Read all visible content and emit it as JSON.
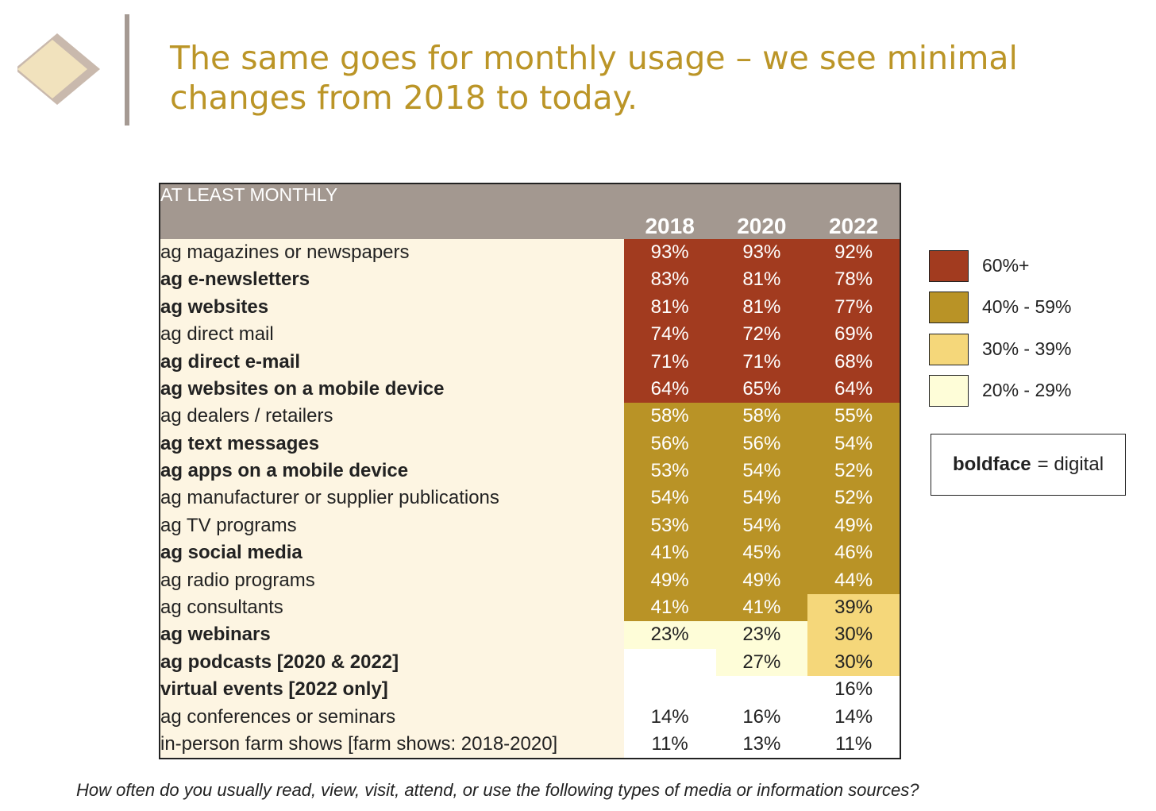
{
  "title": "The same goes for monthly usage – we see minimal changes from 2018 to today.",
  "chart_data": {
    "type": "table",
    "section_header": "AT LEAST MONTHLY",
    "columns": [
      "2018",
      "2020",
      "2022"
    ],
    "rows": [
      {
        "label": "ag magazines or newspapers",
        "digital": false,
        "values": [
          "93%",
          "93%",
          "92%"
        ],
        "bands": [
          "60",
          "60",
          "60"
        ]
      },
      {
        "label": "ag e-newsletters",
        "digital": true,
        "values": [
          "83%",
          "81%",
          "78%"
        ],
        "bands": [
          "60",
          "60",
          "60"
        ]
      },
      {
        "label": "ag websites",
        "digital": true,
        "values": [
          "81%",
          "81%",
          "77%"
        ],
        "bands": [
          "60",
          "60",
          "60"
        ]
      },
      {
        "label": "ag direct mail",
        "digital": false,
        "values": [
          "74%",
          "72%",
          "69%"
        ],
        "bands": [
          "60",
          "60",
          "60"
        ]
      },
      {
        "label": "ag direct e-mail",
        "digital": true,
        "values": [
          "71%",
          "71%",
          "68%"
        ],
        "bands": [
          "60",
          "60",
          "60"
        ]
      },
      {
        "label": "ag websites on a mobile device",
        "digital": true,
        "values": [
          "64%",
          "65%",
          "64%"
        ],
        "bands": [
          "60",
          "60",
          "60"
        ]
      },
      {
        "label": "ag dealers / retailers",
        "digital": false,
        "values": [
          "58%",
          "58%",
          "55%"
        ],
        "bands": [
          "40",
          "40",
          "40"
        ]
      },
      {
        "label": "ag text messages",
        "digital": true,
        "values": [
          "56%",
          "56%",
          "54%"
        ],
        "bands": [
          "40",
          "40",
          "40"
        ]
      },
      {
        "label": "ag apps on a mobile device",
        "digital": true,
        "values": [
          "53%",
          "54%",
          "52%"
        ],
        "bands": [
          "40",
          "40",
          "40"
        ]
      },
      {
        "label": "ag manufacturer or supplier publications",
        "digital": false,
        "values": [
          "54%",
          "54%",
          "52%"
        ],
        "bands": [
          "40",
          "40",
          "40"
        ]
      },
      {
        "label": "ag TV programs",
        "digital": false,
        "values": [
          "53%",
          "54%",
          "49%"
        ],
        "bands": [
          "40",
          "40",
          "40"
        ]
      },
      {
        "label": "ag social media",
        "digital": true,
        "values": [
          "41%",
          "45%",
          "46%"
        ],
        "bands": [
          "40",
          "40",
          "40"
        ]
      },
      {
        "label": "ag radio programs",
        "digital": false,
        "values": [
          "49%",
          "49%",
          "44%"
        ],
        "bands": [
          "40",
          "40",
          "40"
        ]
      },
      {
        "label": "ag consultants",
        "digital": false,
        "values": [
          "41%",
          "41%",
          "39%"
        ],
        "bands": [
          "40",
          "40",
          "30"
        ]
      },
      {
        "label": "ag webinars",
        "digital": true,
        "values": [
          "23%",
          "23%",
          "30%"
        ],
        "bands": [
          "20",
          "20",
          "30"
        ]
      },
      {
        "label": "ag podcasts [2020 & 2022]",
        "digital": true,
        "values": [
          "",
          "27%",
          "30%"
        ],
        "bands": [
          "none",
          "20",
          "30"
        ]
      },
      {
        "label": "virtual events [2022 only]",
        "digital": true,
        "values": [
          "",
          "",
          "16%"
        ],
        "bands": [
          "none",
          "none",
          "none"
        ]
      },
      {
        "label": "ag conferences or seminars",
        "digital": false,
        "values": [
          "14%",
          "16%",
          "14%"
        ],
        "bands": [
          "none",
          "none",
          "none"
        ]
      },
      {
        "label": "in-person farm shows [farm shows: 2018-2020]",
        "digital": false,
        "values": [
          "11%",
          "13%",
          "11%"
        ],
        "bands": [
          "none",
          "none",
          "none"
        ]
      }
    ],
    "legend": [
      {
        "label": "60%+",
        "color": "#a23b1f"
      },
      {
        "label": "40% - 59%",
        "color": "#b99326"
      },
      {
        "label": "30% - 39%",
        "color": "#f5d77a"
      },
      {
        "label": "20% - 29%",
        "color": "#fefdd8"
      }
    ]
  },
  "note": {
    "bold": "boldface",
    "rest": "= digital"
  },
  "question": "How often do you usually read, view, visit, attend, or use the following types of media or information sources?"
}
